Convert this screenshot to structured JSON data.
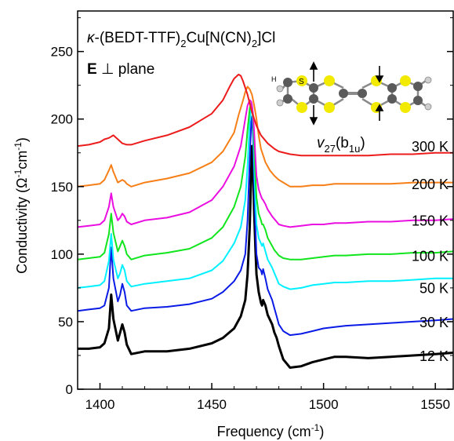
{
  "chart_data": {
    "type": "line",
    "title_parts": {
      "kappa": "κ",
      "pre": "-(BEDT-TTF)",
      "sub1": "2",
      "mid": "Cu[N(CN)",
      "sub2": "2",
      "post": "]Cl"
    },
    "polarization": {
      "bold": "E",
      "rest": " ⊥ plane"
    },
    "mode_label": {
      "v": "v",
      "sub1": "27",
      "open": "(b",
      "sub2": "1u",
      "close": ")"
    },
    "molecule_h_label": "H",
    "molecule_s_label": "S",
    "xlabel": {
      "text": "Frequency (cm",
      "sup": "-1",
      "close": ")"
    },
    "ylabel": {
      "text": "Conductivity (Ω",
      "sup1": "-1",
      "mid": "cm",
      "sup2": "-1",
      "close": ")"
    },
    "xlim": [
      1390,
      1558
    ],
    "ylim": [
      0,
      280
    ],
    "x_ticks": [
      "1400",
      "1450",
      "1500",
      "1550"
    ],
    "x_tick_values": [
      1400,
      1450,
      1500,
      1550
    ],
    "y_ticks": [
      "0",
      "50",
      "100",
      "150",
      "200",
      "250"
    ],
    "y_tick_values": [
      0,
      50,
      100,
      150,
      200,
      250
    ],
    "grid": false,
    "series": [
      {
        "name": "12 K",
        "color": "#000000",
        "stroke": 3,
        "x": [
          1390,
          1395,
          1400,
          1402,
          1404,
          1405,
          1406,
          1408,
          1409,
          1410,
          1411,
          1412,
          1414,
          1420,
          1430,
          1440,
          1450,
          1455,
          1460,
          1463,
          1465,
          1466,
          1467,
          1467.6,
          1468,
          1468.5,
          1469,
          1469.5,
          1470,
          1471,
          1472,
          1472.5,
          1473,
          1474,
          1475,
          1477,
          1478,
          1479,
          1480,
          1482,
          1485,
          1490,
          1495,
          1500,
          1505,
          1510,
          1520,
          1530,
          1540,
          1550,
          1558
        ],
        "y": [
          30,
          30,
          31,
          34,
          45,
          70,
          52,
          36,
          42,
          48,
          42,
          33,
          26,
          28,
          28,
          30,
          34,
          38,
          45,
          54,
          66,
          85,
          120,
          160,
          180,
          160,
          130,
          105,
          85,
          72,
          64,
          62,
          66,
          62,
          55,
          48,
          42,
          38,
          32,
          22,
          16,
          17,
          20,
          22,
          24,
          24,
          23,
          24,
          25,
          26,
          27
        ]
      },
      {
        "name": "30 K",
        "color": "#0a1be6",
        "stroke": 2,
        "x": [
          1390,
          1395,
          1400,
          1402,
          1404,
          1405,
          1406,
          1408,
          1409,
          1410,
          1411,
          1412,
          1414,
          1420,
          1430,
          1440,
          1450,
          1455,
          1460,
          1463,
          1465,
          1466,
          1467,
          1467.6,
          1468,
          1468.5,
          1469,
          1469.5,
          1470,
          1471,
          1472,
          1472.5,
          1473,
          1474,
          1475,
          1477,
          1478,
          1479,
          1480,
          1482,
          1485,
          1490,
          1495,
          1500,
          1505,
          1510,
          1520,
          1530,
          1540,
          1550,
          1558
        ],
        "y": [
          58,
          59,
          60,
          62,
          75,
          105,
          82,
          65,
          70,
          78,
          72,
          62,
          58,
          60,
          61,
          63,
          67,
          72,
          80,
          88,
          100,
          125,
          170,
          197,
          202,
          185,
          150,
          120,
          100,
          90,
          88,
          85,
          89,
          82,
          74,
          66,
          60,
          54,
          48,
          43,
          40,
          41,
          43,
          45,
          46,
          47,
          48,
          49,
          50,
          51,
          52
        ]
      },
      {
        "name": "50 K",
        "color": "#00f0ff",
        "stroke": 2,
        "x": [
          1390,
          1395,
          1400,
          1402,
          1404,
          1405,
          1406,
          1408,
          1409,
          1410,
          1411,
          1412,
          1414,
          1420,
          1430,
          1440,
          1450,
          1455,
          1460,
          1463,
          1465,
          1466,
          1467,
          1467.6,
          1468,
          1468.5,
          1469,
          1469.5,
          1470,
          1471,
          1472,
          1472.5,
          1473,
          1474,
          1475,
          1477,
          1478,
          1479,
          1480,
          1482,
          1485,
          1490,
          1495,
          1500,
          1505,
          1510,
          1520,
          1530,
          1540,
          1550,
          1558
        ],
        "y": [
          75,
          76,
          77,
          80,
          95,
          115,
          96,
          82,
          86,
          92,
          88,
          80,
          76,
          78,
          80,
          82,
          88,
          95,
          108,
          120,
          140,
          165,
          198,
          210,
          210,
          195,
          165,
          140,
          122,
          112,
          108,
          106,
          108,
          102,
          96,
          90,
          86,
          82,
          78,
          76,
          74,
          75,
          77,
          78,
          79,
          79,
          80,
          80,
          81,
          82,
          82
        ]
      },
      {
        "name": "100 K",
        "color": "#11e51d",
        "stroke": 2,
        "x": [
          1390,
          1395,
          1400,
          1402,
          1404,
          1405,
          1406,
          1408,
          1409,
          1410,
          1411,
          1412,
          1414,
          1420,
          1430,
          1440,
          1450,
          1455,
          1460,
          1463,
          1465,
          1466,
          1467,
          1467.6,
          1468,
          1468.5,
          1469,
          1469.5,
          1470,
          1471,
          1472,
          1472.5,
          1473,
          1474,
          1475,
          1477,
          1478,
          1479,
          1480,
          1482,
          1485,
          1490,
          1495,
          1500,
          1505,
          1510,
          1520,
          1530,
          1540,
          1550,
          1558
        ],
        "y": [
          96,
          97,
          98,
          101,
          115,
          130,
          116,
          102,
          106,
          110,
          106,
          100,
          96,
          99,
          101,
          104,
          112,
          120,
          135,
          150,
          172,
          192,
          208,
          212,
          210,
          200,
          180,
          158,
          142,
          130,
          125,
          122,
          122,
          118,
          112,
          106,
          103,
          101,
          99,
          97,
          96,
          96,
          97,
          98,
          99,
          99,
          100,
          100,
          101,
          101,
          102
        ]
      },
      {
        "name": "150 K",
        "color": "#ea0ee0",
        "stroke": 2,
        "x": [
          1390,
          1395,
          1400,
          1402,
          1404,
          1405,
          1406,
          1408,
          1409,
          1410,
          1411,
          1412,
          1414,
          1420,
          1430,
          1440,
          1450,
          1455,
          1460,
          1463,
          1465,
          1466,
          1467,
          1467.6,
          1468,
          1468.5,
          1469,
          1469.5,
          1470,
          1471,
          1472,
          1472.5,
          1473,
          1474,
          1475,
          1477,
          1478,
          1479,
          1480,
          1482,
          1485,
          1490,
          1495,
          1500,
          1505,
          1510,
          1520,
          1530,
          1540,
          1550,
          1558
        ],
        "y": [
          120,
          121,
          122,
          125,
          135,
          145,
          135,
          125,
          127,
          130,
          128,
          124,
          122,
          125,
          127,
          131,
          140,
          150,
          165,
          180,
          200,
          210,
          214,
          213,
          210,
          203,
          190,
          172,
          158,
          148,
          143,
          141,
          140,
          137,
          133,
          128,
          126,
          124,
          122,
          121,
          120,
          121,
          122,
          122,
          123,
          123,
          124,
          124,
          125,
          125,
          126
        ]
      },
      {
        "name": "200 K",
        "color": "#f77f17",
        "stroke": 2,
        "x": [
          1390,
          1395,
          1400,
          1402,
          1404,
          1405,
          1406,
          1408,
          1409,
          1410,
          1411,
          1412,
          1414,
          1420,
          1430,
          1440,
          1450,
          1455,
          1460,
          1462,
          1464,
          1465,
          1466,
          1467,
          1468,
          1469,
          1470,
          1471,
          1472,
          1474,
          1476,
          1478,
          1480,
          1482,
          1485,
          1490,
          1495,
          1500,
          1505,
          1510,
          1520,
          1530,
          1540,
          1550,
          1558
        ],
        "y": [
          150,
          151,
          152,
          155,
          162,
          166,
          161,
          153,
          154,
          155,
          154,
          152,
          150,
          153,
          156,
          160,
          168,
          176,
          190,
          203,
          214,
          220,
          224,
          222,
          218,
          210,
          200,
          188,
          178,
          168,
          162,
          158,
          155,
          153,
          150,
          150,
          151,
          151,
          152,
          152,
          152,
          152,
          153,
          153,
          153
        ]
      },
      {
        "name": "300 K",
        "color": "#ec1c1c",
        "stroke": 2,
        "x": [
          1390,
          1395,
          1400,
          1402,
          1404,
          1406,
          1408,
          1410,
          1412,
          1414,
          1420,
          1430,
          1440,
          1450,
          1455,
          1458,
          1460,
          1462,
          1463,
          1464,
          1466,
          1468,
          1470,
          1472,
          1475,
          1478,
          1480,
          1485,
          1490,
          1495,
          1500,
          1510,
          1520,
          1530,
          1540,
          1550,
          1558
        ],
        "y": [
          180,
          181,
          183,
          185,
          186,
          188,
          185,
          182,
          181,
          181,
          184,
          188,
          194,
          204,
          214,
          224,
          230,
          233,
          232,
          228,
          218,
          205,
          195,
          188,
          182,
          178,
          176,
          174,
          173,
          173,
          173,
          173,
          173,
          174,
          174,
          175,
          175
        ]
      }
    ],
    "temp_labels": [
      "300 K",
      "200 K",
      "150 K",
      "100 K",
      "50 K",
      "30 K",
      "12 K"
    ],
    "temp_label_values": [
      183,
      155,
      128,
      102,
      78,
      53,
      28
    ]
  }
}
